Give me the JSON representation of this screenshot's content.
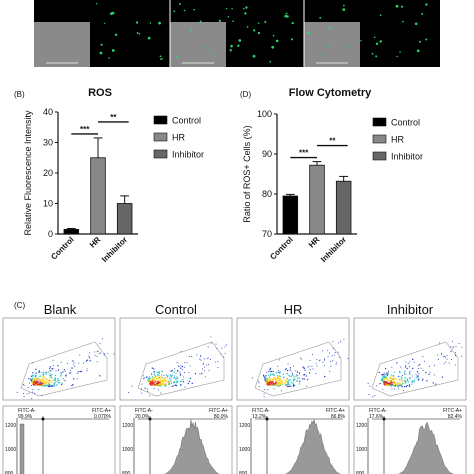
{
  "colors": {
    "control": "#000000",
    "hr": "#888888",
    "inhibitor": "#666666",
    "microscopy_bg": "#000000",
    "brightfield": "#8a8a8a",
    "fluor_dot": "#2bd66a",
    "flow_low": "#1f3fbf",
    "flow_mid": "#22c6c6",
    "flow_high": "#ffd21f",
    "flow_peak": "#e0321c",
    "hist_fill": "#999999"
  },
  "panel_b": {
    "label": "(B)",
    "chart_data": {
      "type": "bar",
      "title": "ROS",
      "ylabel": "Relative Fluorescence Intensity",
      "xlabel": "",
      "categories": [
        "Control",
        "HR",
        "Inhibitor"
      ],
      "values": [
        1.5,
        25,
        10
      ],
      "errors": [
        0.3,
        6.5,
        2.5
      ],
      "ylim": [
        0,
        40
      ],
      "yticks": [
        0,
        10,
        20,
        30,
        40
      ],
      "legend": [
        "Control",
        "HR",
        "Inhibitor"
      ],
      "legend_position": "right",
      "significance": [
        {
          "from": "Control",
          "to": "HR",
          "label": "***"
        },
        {
          "from": "HR",
          "to": "Inhibitor",
          "label": "**"
        }
      ]
    }
  },
  "panel_d": {
    "label": "(D)",
    "chart_data": {
      "type": "bar",
      "title": "Flow Cytometry",
      "ylabel": "Ratio of ROS+ Cells (%)",
      "xlabel": "",
      "categories": [
        "Control",
        "HR",
        "Inhibitor"
      ],
      "values": [
        79.5,
        87.2,
        83.2
      ],
      "errors": [
        0.4,
        0.9,
        1.2
      ],
      "ylim": [
        70,
        100
      ],
      "yticks": [
        70,
        80,
        90,
        100
      ],
      "legend": [
        "Control",
        "HR",
        "Inhibitor"
      ],
      "legend_position": "right",
      "significance": [
        {
          "from": "Control",
          "to": "HR",
          "label": "***"
        },
        {
          "from": "HR",
          "to": "Inhibitor",
          "label": "**"
        }
      ]
    }
  },
  "panel_c": {
    "label": "(C)",
    "titles": [
      "Blank",
      "Control",
      "HR",
      "Inhibitor"
    ],
    "histograms": [
      {
        "neg_label": "FITC-A-",
        "pos_label": "FITC-A+",
        "neg_pct": "99.9%",
        "pos_pct": "0.070%"
      },
      {
        "neg_label": "FITC-A-",
        "pos_label": "FITC-A+",
        "neg_pct": "20.0%",
        "pos_pct": "80.0%"
      },
      {
        "neg_label": "FITC-A-",
        "pos_label": "FITC-A+",
        "neg_pct": "13.2%",
        "pos_pct": "86.8%"
      },
      {
        "neg_label": "FITC-A-",
        "pos_label": "FITC-A+",
        "neg_pct": "17.6%",
        "pos_pct": "82.4%"
      }
    ],
    "hist_yticks": [
      "1200",
      "1000",
      "800"
    ]
  }
}
